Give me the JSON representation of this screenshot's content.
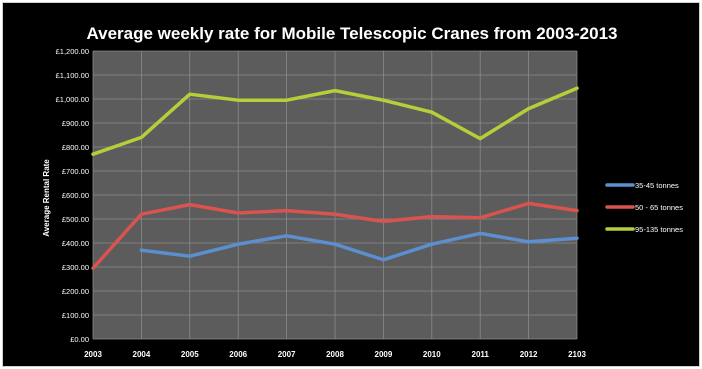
{
  "chart_data": {
    "type": "line",
    "title": "Average weekly rate for Mobile Telescopic Cranes from 2003-2013",
    "xlabel": "",
    "ylabel": "Average Rental Rate",
    "x": [
      "2003",
      "2004",
      "2005",
      "2006",
      "2007",
      "2008",
      "2009",
      "2010",
      "2011",
      "2012",
      "2103"
    ],
    "ylim": [
      0,
      1200
    ],
    "yticks": [
      {
        "value": 0,
        "label": "£0.00"
      },
      {
        "value": 100,
        "label": "£100.00"
      },
      {
        "value": 200,
        "label": "£200.00"
      },
      {
        "value": 300,
        "label": "£300.00"
      },
      {
        "value": 400,
        "label": "£400.00"
      },
      {
        "value": 500,
        "label": "£500.00"
      },
      {
        "value": 600,
        "label": "£600.00"
      },
      {
        "value": 700,
        "label": "£700.00"
      },
      {
        "value": 800,
        "label": "£800.00"
      },
      {
        "value": 900,
        "label": "£900.00"
      },
      {
        "value": 1000,
        "label": "£1,000.00"
      },
      {
        "value": 1100,
        "label": "£1,100.00"
      },
      {
        "value": 1200,
        "label": "£1,200.00"
      }
    ],
    "grid": true,
    "legend_position": "right",
    "series": [
      {
        "name": "35-45 tonnes",
        "color": "#5b8fd0",
        "values": [
          null,
          370,
          345,
          395,
          430,
          395,
          330,
          395,
          440,
          405,
          420
        ]
      },
      {
        "name": "50 - 65 tonnes",
        "color": "#d9534f",
        "values": [
          295,
          520,
          560,
          525,
          535,
          520,
          490,
          510,
          505,
          565,
          535
        ]
      },
      {
        "name": "95-135 tonnes",
        "color": "#b5cf3a",
        "values": [
          770,
          840,
          1020,
          995,
          995,
          1035,
          995,
          945,
          835,
          960,
          1045
        ]
      }
    ]
  }
}
